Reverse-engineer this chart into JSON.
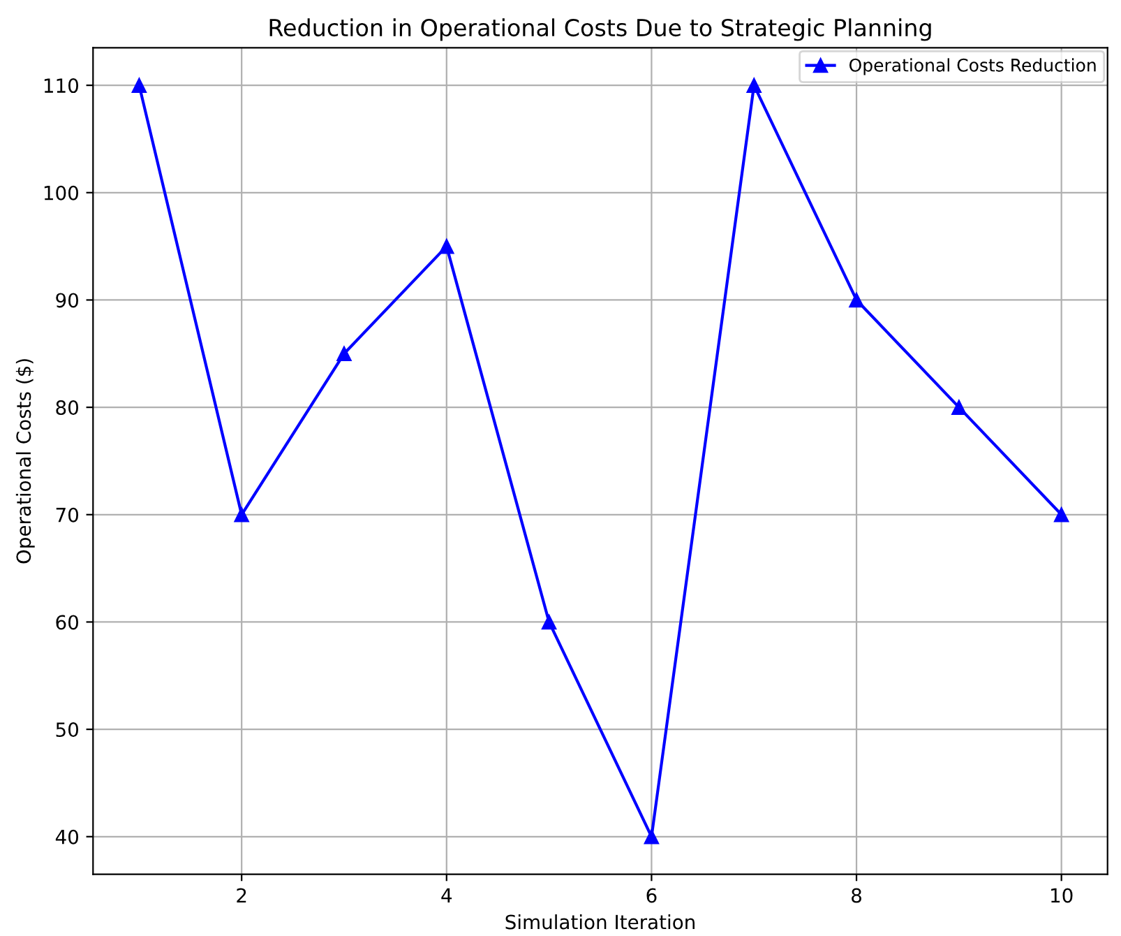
{
  "chart_data": {
    "type": "line",
    "title": "Reduction in Operational Costs Due to Strategic Planning",
    "xlabel": "Simulation Iteration",
    "ylabel": "Operational Costs ($)",
    "x": [
      1,
      2,
      3,
      4,
      5,
      6,
      7,
      8,
      9,
      10
    ],
    "series": [
      {
        "name": "Operational Costs Reduction",
        "color": "#0000ff",
        "values": [
          110,
          70,
          85,
          95,
          60,
          40,
          110,
          90,
          80,
          70
        ]
      }
    ],
    "xlim": [
      0.55,
      10.45
    ],
    "ylim": [
      36.5,
      113.5
    ],
    "xticks": [
      2,
      4,
      6,
      8,
      10
    ],
    "yticks": [
      40,
      50,
      60,
      70,
      80,
      90,
      100,
      110
    ],
    "grid": true,
    "legend": "top right",
    "marker": "triangle",
    "line_style": "solid"
  }
}
